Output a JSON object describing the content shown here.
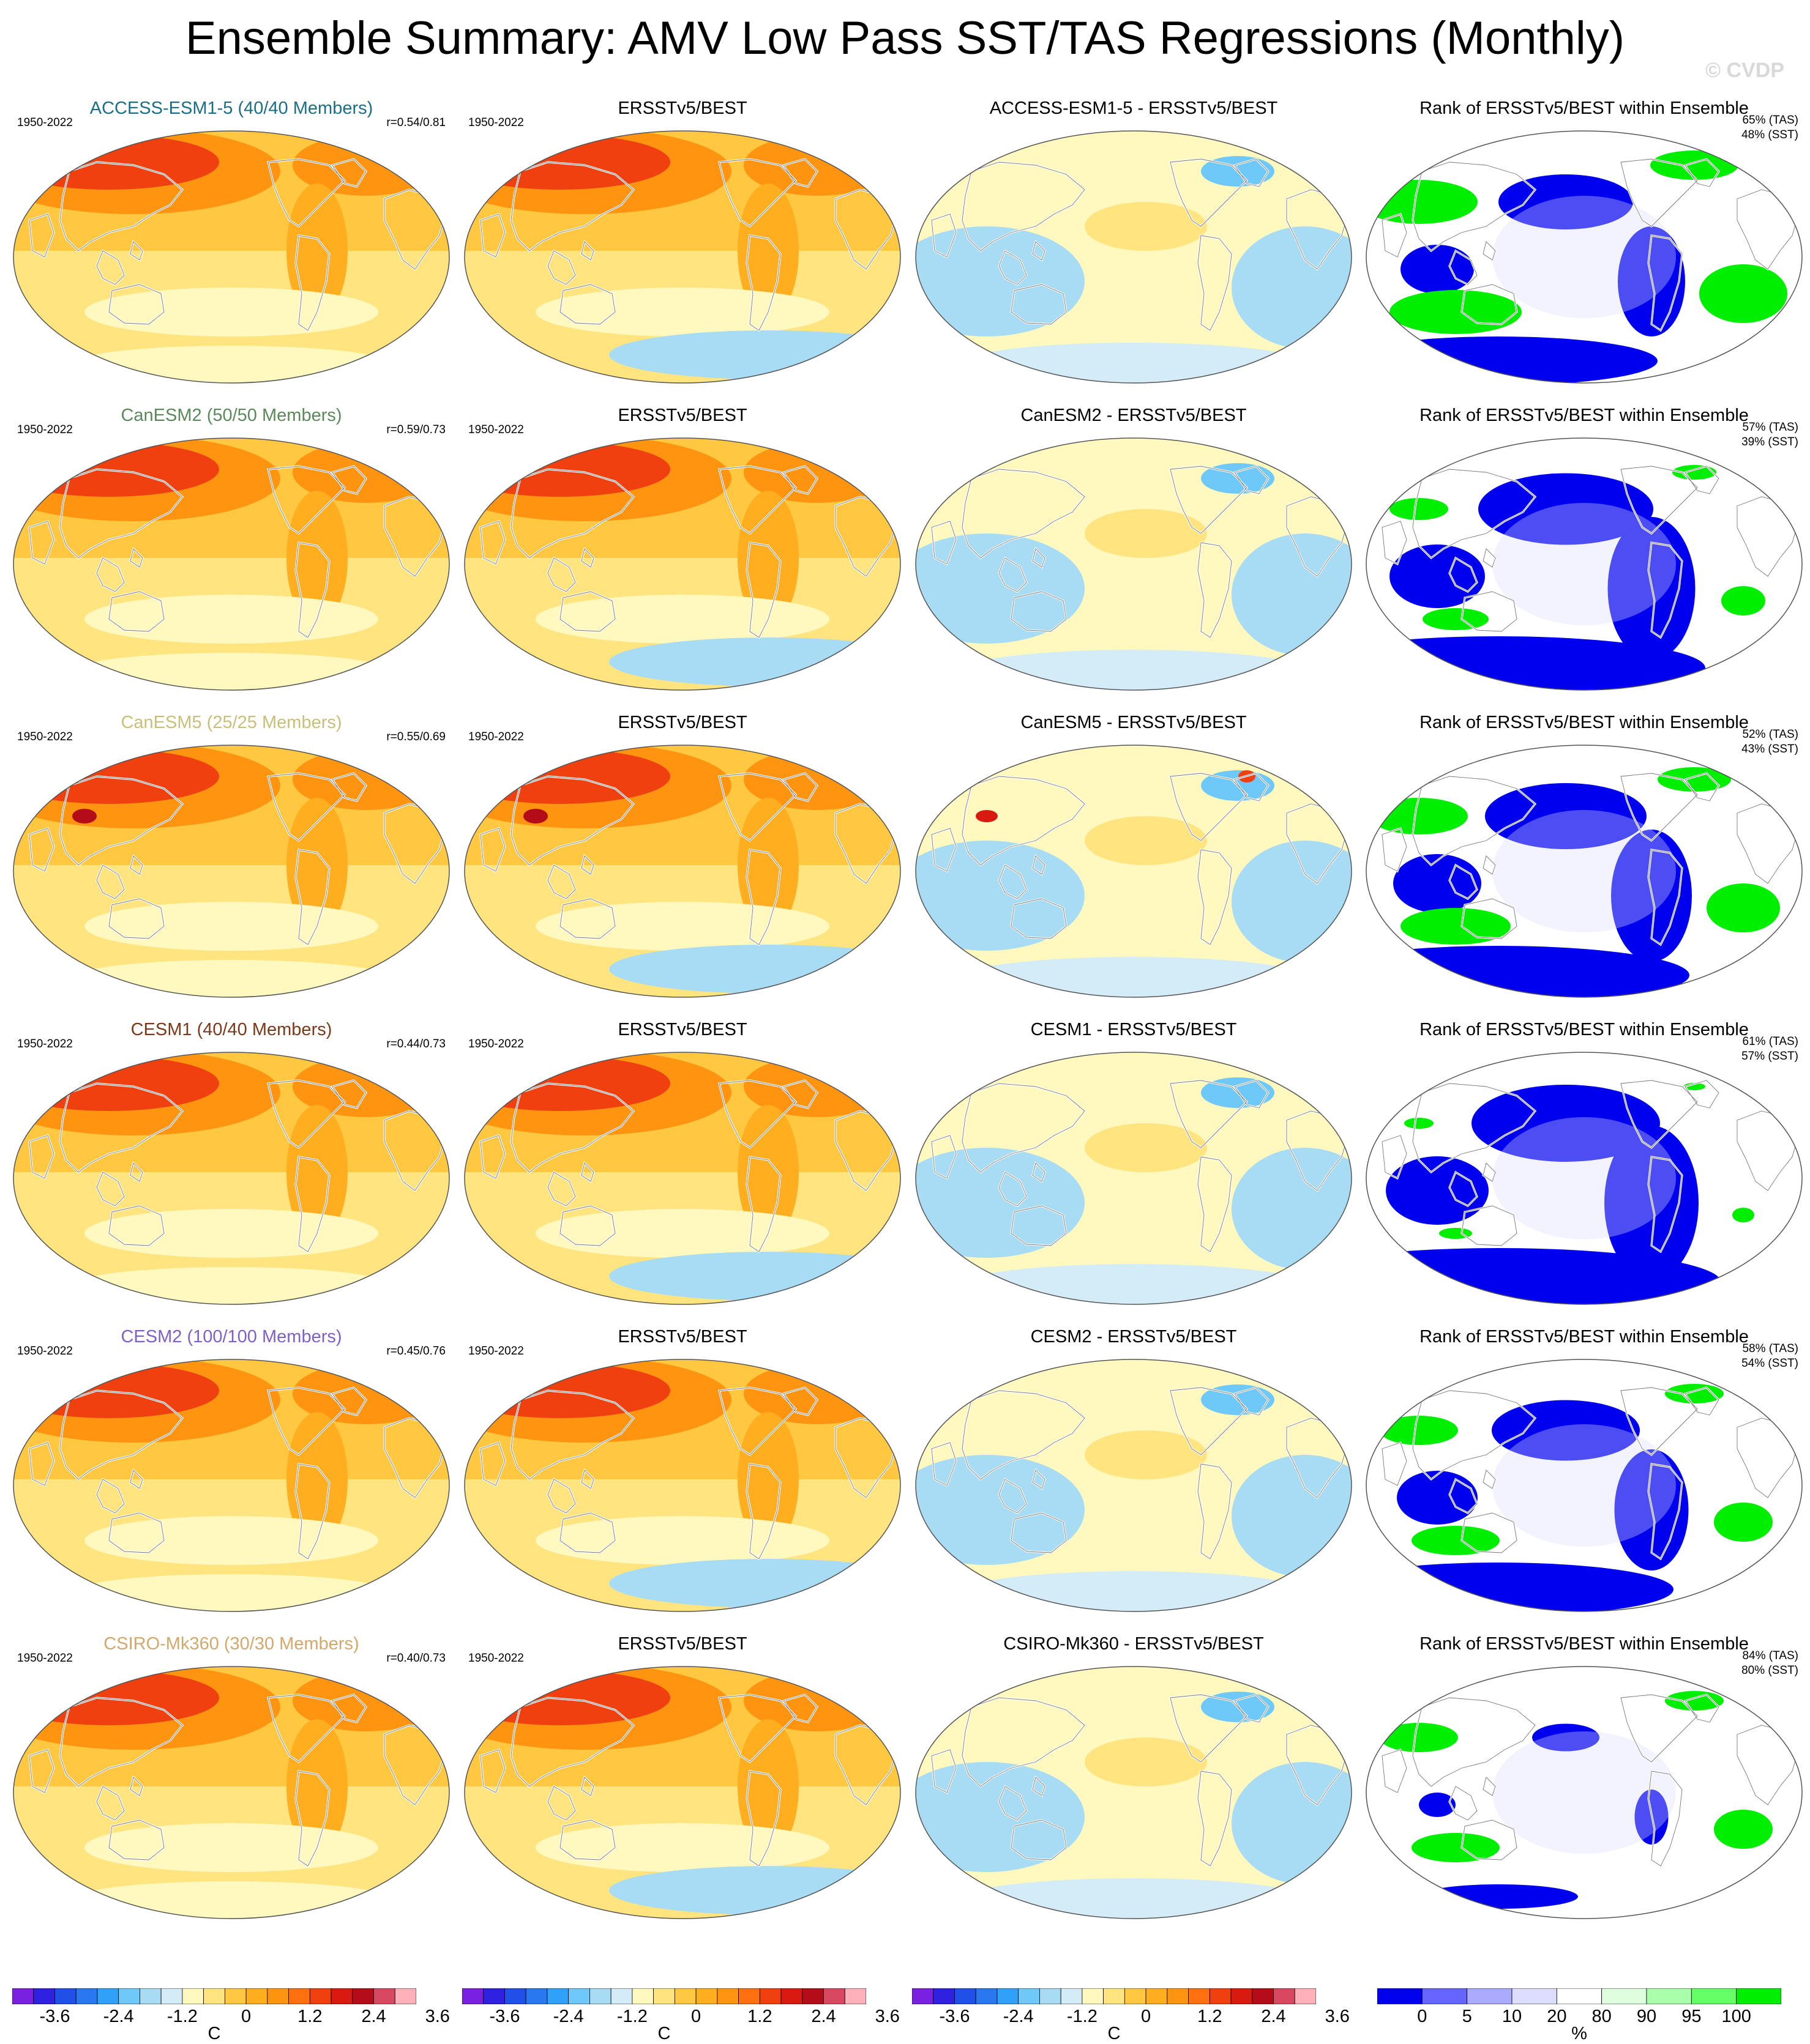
{
  "title": "Ensemble Summary: AMV Low Pass SST/TAS Regressions (Monthly)",
  "credit": "© CVDP",
  "period": "1950-2022",
  "obs_title": "ERSSTv5/BEST",
  "rank_title": "Rank of ERSSTv5/BEST within Ensemble",
  "rows": [
    {
      "model_title": "ACCESS-ESM1-5 (40/40 Members)",
      "title_color": "#1a6f86",
      "r": "r=0.54/0.81",
      "diff_title": "ACCESS-ESM1-5 - ERSSTv5/BEST",
      "rank_tas": "65% (TAS)",
      "rank_sst": "48% (SST)"
    },
    {
      "model_title": "CanESM2 (50/50 Members)",
      "title_color": "#5a8a5a",
      "r": "r=0.59/0.73",
      "diff_title": "CanESM2 - ERSSTv5/BEST",
      "rank_tas": "57% (TAS)",
      "rank_sst": "39% (SST)"
    },
    {
      "model_title": "CanESM5 (25/25 Members)",
      "title_color": "#c8c07a",
      "r": "r=0.55/0.69",
      "diff_title": "CanESM5 - ERSSTv5/BEST",
      "rank_tas": "52% (TAS)",
      "rank_sst": "43% (SST)"
    },
    {
      "model_title": "CESM1 (40/40 Members)",
      "title_color": "#7a3a1a",
      "r": "r=0.44/0.73",
      "diff_title": "CESM1 - ERSSTv5/BEST",
      "rank_tas": "61% (TAS)",
      "rank_sst": "57% (SST)"
    },
    {
      "model_title": "CESM2 (100/100 Members)",
      "title_color": "#8060c8",
      "r": "r=0.45/0.76",
      "diff_title": "CESM2 - ERSSTv5/BEST",
      "rank_tas": "58% (TAS)",
      "rank_sst": "54% (SST)"
    },
    {
      "model_title": "CSIRO-Mk360 (30/30 Members)",
      "title_color": "#d4a86a",
      "r": "r=0.40/0.73",
      "diff_title": "CSIRO-Mk360 - ERSSTv5/BEST",
      "rank_tas": "84% (TAS)",
      "rank_sst": "80% (SST)"
    }
  ],
  "colorbar": {
    "colors": [
      "#7a20e0",
      "#3020e0",
      "#2050e8",
      "#2a78f0",
      "#30a0f8",
      "#6ec8f8",
      "#a8dcf4",
      "#d4ecf8",
      "#fff9c0",
      "#ffe480",
      "#ffc840",
      "#ffae20",
      "#ff9410",
      "#ff7010",
      "#f04010",
      "#d81a10",
      "#b40c18",
      "#d84860",
      "#ffb0b8"
    ],
    "labels": [
      "-3.6",
      "-2.4",
      "-1.2",
      "0",
      "1.2",
      "2.4",
      "3.6"
    ],
    "unit": "C"
  },
  "rank_colorbar": {
    "colors": [
      "#0000ee",
      "#6666ff",
      "#aaaaff",
      "#ddddff",
      "#ffffff",
      "#ddffdd",
      "#aaffaa",
      "#66ff66",
      "#00ee00"
    ],
    "labels": [
      "0",
      "5",
      "10",
      "20",
      "80",
      "90",
      "95",
      "100"
    ],
    "unit": "%"
  }
}
